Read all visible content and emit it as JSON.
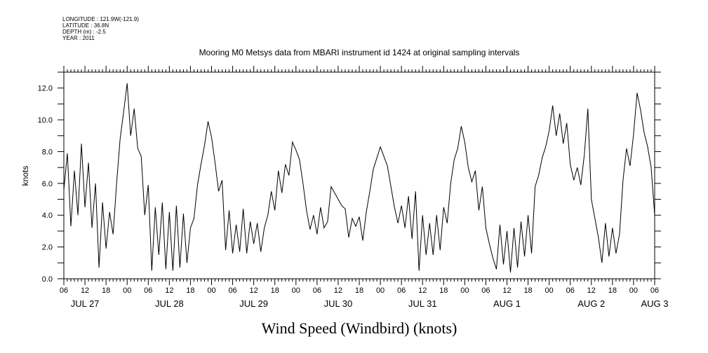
{
  "header": {
    "lines": [
      "LONGITUDE : 121.9W(-121.9)",
      "LATITUDE : 36.8N",
      "DEPTH (m) : -2.5",
      "YEAR : 2011"
    ]
  },
  "chart_data": {
    "type": "line",
    "title": "Mooring M0 Metsys data from MBARI instrument id 1424 at original sampling intervals",
    "xlabel": "Wind Speed (Windbird) (knots)",
    "ylabel": "knots",
    "xlim": [
      "2011-07-27T06:00",
      "2011-08-03T06:00"
    ],
    "ylim": [
      0,
      13
    ],
    "y_ticks": [
      "0.0",
      "2.0",
      "4.0",
      "6.0",
      "8.0",
      "10.0",
      "12.0"
    ],
    "x_hour_ticks": [
      "06",
      "12",
      "18",
      "00",
      "06",
      "12",
      "18",
      "00",
      "06",
      "12",
      "18",
      "00",
      "06",
      "12",
      "18",
      "00",
      "06",
      "12",
      "18",
      "00",
      "06",
      "12",
      "18",
      "00",
      "06",
      "12",
      "18",
      "00",
      "06"
    ],
    "date_labels": [
      {
        "text": "JUL 27",
        "x": "2011-07-27T12:00"
      },
      {
        "text": "JUL 28",
        "x": "2011-07-28T12:00"
      },
      {
        "text": "JUL 29",
        "x": "2011-07-29T12:00"
      },
      {
        "text": "JUL 30",
        "x": "2011-07-30T12:00"
      },
      {
        "text": "JUL 31",
        "x": "2011-07-31T12:00"
      },
      {
        "text": "AUG 1",
        "x": "2011-08-01T12:00"
      },
      {
        "text": "AUG 2",
        "x": "2011-08-02T12:00"
      },
      {
        "text": "AUG 3",
        "x": "2011-08-03T06:00"
      }
    ],
    "grid": false,
    "series": [
      {
        "color": "#000000",
        "points": [
          [
            "2011-07-27T06:00",
            5.6
          ],
          [
            "2011-07-27T07:00",
            7.9
          ],
          [
            "2011-07-27T08:00",
            3.3
          ],
          [
            "2011-07-27T09:00",
            6.8
          ],
          [
            "2011-07-27T10:00",
            4.0
          ],
          [
            "2011-07-27T11:00",
            8.5
          ],
          [
            "2011-07-27T12:00",
            4.5
          ],
          [
            "2011-07-27T13:00",
            7.3
          ],
          [
            "2011-07-27T14:00",
            3.2
          ],
          [
            "2011-07-27T15:00",
            6.0
          ],
          [
            "2011-07-27T16:00",
            0.7
          ],
          [
            "2011-07-27T17:00",
            4.8
          ],
          [
            "2011-07-27T18:00",
            1.9
          ],
          [
            "2011-07-27T19:00",
            4.2
          ],
          [
            "2011-07-27T20:00",
            2.8
          ],
          [
            "2011-07-27T21:00",
            6.0
          ],
          [
            "2011-07-27T22:00",
            8.8
          ],
          [
            "2011-07-27T23:00",
            10.5
          ],
          [
            "2011-07-28T00:00",
            12.3
          ],
          [
            "2011-07-28T01:00",
            9.0
          ],
          [
            "2011-07-28T02:00",
            10.7
          ],
          [
            "2011-07-28T03:00",
            8.2
          ],
          [
            "2011-07-28T04:00",
            7.7
          ],
          [
            "2011-07-28T05:00",
            4.0
          ],
          [
            "2011-07-28T06:00",
            5.9
          ],
          [
            "2011-07-28T07:00",
            0.5
          ],
          [
            "2011-07-28T08:00",
            4.5
          ],
          [
            "2011-07-28T09:00",
            1.5
          ],
          [
            "2011-07-28T10:00",
            4.8
          ],
          [
            "2011-07-28T11:00",
            0.6
          ],
          [
            "2011-07-28T12:00",
            4.2
          ],
          [
            "2011-07-28T13:00",
            0.5
          ],
          [
            "2011-07-28T14:00",
            4.6
          ],
          [
            "2011-07-28T15:00",
            0.7
          ],
          [
            "2011-07-28T16:00",
            4.1
          ],
          [
            "2011-07-28T17:00",
            1.0
          ],
          [
            "2011-07-28T18:00",
            3.2
          ],
          [
            "2011-07-28T19:00",
            3.8
          ],
          [
            "2011-07-28T20:00",
            5.9
          ],
          [
            "2011-07-28T21:00",
            7.2
          ],
          [
            "2011-07-28T22:00",
            8.4
          ],
          [
            "2011-07-28T23:00",
            9.9
          ],
          [
            "2011-07-29T00:00",
            8.9
          ],
          [
            "2011-07-29T01:00",
            7.3
          ],
          [
            "2011-07-29T02:00",
            5.5
          ],
          [
            "2011-07-29T03:00",
            6.2
          ],
          [
            "2011-07-29T04:00",
            1.8
          ],
          [
            "2011-07-29T05:00",
            4.3
          ],
          [
            "2011-07-29T06:00",
            1.6
          ],
          [
            "2011-07-29T07:00",
            3.4
          ],
          [
            "2011-07-29T08:00",
            1.7
          ],
          [
            "2011-07-29T09:00",
            4.4
          ],
          [
            "2011-07-29T10:00",
            1.6
          ],
          [
            "2011-07-29T11:00",
            3.6
          ],
          [
            "2011-07-29T12:00",
            2.2
          ],
          [
            "2011-07-29T13:00",
            3.5
          ],
          [
            "2011-07-29T14:00",
            1.7
          ],
          [
            "2011-07-29T15:00",
            3.2
          ],
          [
            "2011-07-29T16:00",
            4.0
          ],
          [
            "2011-07-29T17:00",
            5.5
          ],
          [
            "2011-07-29T18:00",
            4.3
          ],
          [
            "2011-07-29T19:00",
            6.8
          ],
          [
            "2011-07-29T20:00",
            5.4
          ],
          [
            "2011-07-29T21:00",
            7.2
          ],
          [
            "2011-07-29T22:00",
            6.5
          ],
          [
            "2011-07-29T23:00",
            8.6
          ],
          [
            "2011-07-30T00:00",
            8.1
          ],
          [
            "2011-07-30T01:00",
            7.5
          ],
          [
            "2011-07-30T02:00",
            6.0
          ],
          [
            "2011-07-30T03:00",
            4.3
          ],
          [
            "2011-07-30T04:00",
            3.1
          ],
          [
            "2011-07-30T05:00",
            4.0
          ],
          [
            "2011-07-30T06:00",
            2.8
          ],
          [
            "2011-07-30T07:00",
            4.5
          ],
          [
            "2011-07-30T08:00",
            3.2
          ],
          [
            "2011-07-30T09:00",
            3.6
          ],
          [
            "2011-07-30T10:00",
            5.8
          ],
          [
            "2011-07-30T11:00",
            5.4
          ],
          [
            "2011-07-30T12:00",
            5.0
          ],
          [
            "2011-07-30T13:00",
            4.6
          ],
          [
            "2011-07-30T14:00",
            4.4
          ],
          [
            "2011-07-30T15:00",
            2.6
          ],
          [
            "2011-07-30T16:00",
            3.8
          ],
          [
            "2011-07-30T17:00",
            3.3
          ],
          [
            "2011-07-30T18:00",
            3.9
          ],
          [
            "2011-07-30T19:00",
            2.4
          ],
          [
            "2011-07-30T20:00",
            4.2
          ],
          [
            "2011-07-30T21:00",
            5.5
          ],
          [
            "2011-07-30T22:00",
            6.9
          ],
          [
            "2011-07-30T23:00",
            7.6
          ],
          [
            "2011-07-31T00:00",
            8.3
          ],
          [
            "2011-07-31T01:00",
            7.7
          ],
          [
            "2011-07-31T02:00",
            7.1
          ],
          [
            "2011-07-31T03:00",
            5.8
          ],
          [
            "2011-07-31T04:00",
            4.5
          ],
          [
            "2011-07-31T05:00",
            3.5
          ],
          [
            "2011-07-31T06:00",
            4.6
          ],
          [
            "2011-07-31T07:00",
            3.2
          ],
          [
            "2011-07-31T08:00",
            5.2
          ],
          [
            "2011-07-31T09:00",
            2.5
          ],
          [
            "2011-07-31T10:00",
            5.5
          ],
          [
            "2011-07-31T11:00",
            0.5
          ],
          [
            "2011-07-31T12:00",
            4.0
          ],
          [
            "2011-07-31T13:00",
            1.5
          ],
          [
            "2011-07-31T14:00",
            3.5
          ],
          [
            "2011-07-31T15:00",
            1.5
          ],
          [
            "2011-07-31T16:00",
            4.0
          ],
          [
            "2011-07-31T17:00",
            1.8
          ],
          [
            "2011-07-31T18:00",
            4.5
          ],
          [
            "2011-07-31T19:00",
            3.5
          ],
          [
            "2011-07-31T20:00",
            6.0
          ],
          [
            "2011-07-31T21:00",
            7.5
          ],
          [
            "2011-07-31T22:00",
            8.2
          ],
          [
            "2011-07-31T23:00",
            9.6
          ],
          [
            "2011-08-01T00:00",
            8.6
          ],
          [
            "2011-08-01T01:00",
            7.0
          ],
          [
            "2011-08-01T02:00",
            6.1
          ],
          [
            "2011-08-01T03:00",
            6.8
          ],
          [
            "2011-08-01T04:00",
            4.3
          ],
          [
            "2011-08-01T05:00",
            5.8
          ],
          [
            "2011-08-01T06:00",
            3.2
          ],
          [
            "2011-08-01T07:00",
            2.2
          ],
          [
            "2011-08-01T08:00",
            1.3
          ],
          [
            "2011-08-01T09:00",
            0.6
          ],
          [
            "2011-08-01T10:00",
            3.4
          ],
          [
            "2011-08-01T11:00",
            0.9
          ],
          [
            "2011-08-01T12:00",
            3.0
          ],
          [
            "2011-08-01T13:00",
            0.4
          ],
          [
            "2011-08-01T14:00",
            3.2
          ],
          [
            "2011-08-01T15:00",
            0.7
          ],
          [
            "2011-08-01T16:00",
            3.6
          ],
          [
            "2011-08-01T17:00",
            1.4
          ],
          [
            "2011-08-01T18:00",
            4.0
          ],
          [
            "2011-08-01T19:00",
            1.6
          ],
          [
            "2011-08-01T20:00",
            5.8
          ],
          [
            "2011-08-01T21:00",
            6.5
          ],
          [
            "2011-08-01T22:00",
            7.6
          ],
          [
            "2011-08-01T23:00",
            8.3
          ],
          [
            "2011-08-02T00:00",
            9.3
          ],
          [
            "2011-08-02T01:00",
            10.9
          ],
          [
            "2011-08-02T02:00",
            9.0
          ],
          [
            "2011-08-02T03:00",
            10.4
          ],
          [
            "2011-08-02T04:00",
            8.5
          ],
          [
            "2011-08-02T05:00",
            9.8
          ],
          [
            "2011-08-02T06:00",
            7.2
          ],
          [
            "2011-08-02T07:00",
            6.2
          ],
          [
            "2011-08-02T08:00",
            7.0
          ],
          [
            "2011-08-02T09:00",
            5.9
          ],
          [
            "2011-08-02T10:00",
            7.8
          ],
          [
            "2011-08-02T11:00",
            10.7
          ],
          [
            "2011-08-02T12:00",
            5.0
          ],
          [
            "2011-08-02T13:00",
            3.8
          ],
          [
            "2011-08-02T14:00",
            2.6
          ],
          [
            "2011-08-02T15:00",
            1.0
          ],
          [
            "2011-08-02T16:00",
            3.5
          ],
          [
            "2011-08-02T17:00",
            1.4
          ],
          [
            "2011-08-02T18:00",
            3.2
          ],
          [
            "2011-08-02T19:00",
            1.6
          ],
          [
            "2011-08-02T20:00",
            2.8
          ],
          [
            "2011-08-02T21:00",
            6.2
          ],
          [
            "2011-08-02T22:00",
            8.2
          ],
          [
            "2011-08-02T23:00",
            7.1
          ],
          [
            "2011-08-03T00:00",
            9.1
          ],
          [
            "2011-08-03T01:00",
            11.7
          ],
          [
            "2011-08-03T02:00",
            10.6
          ],
          [
            "2011-08-03T03:00",
            9.2
          ],
          [
            "2011-08-03T04:00",
            8.3
          ],
          [
            "2011-08-03T05:00",
            7.0
          ],
          [
            "2011-08-03T06:00",
            4.0
          ]
        ]
      }
    ]
  }
}
